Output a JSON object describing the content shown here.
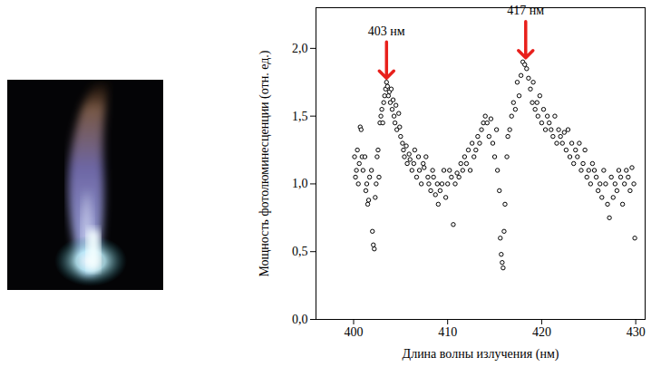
{
  "chart_data": {
    "type": "scatter",
    "x_label": "Длина волны излучения (нм)",
    "y_label": "Мощность фотолюминесценции (отн. ед.)",
    "x": [
      400.1,
      400.2,
      400.3,
      400.4,
      400.5,
      400.6,
      400.7,
      400.8,
      400.9,
      401.0,
      401.2,
      401.3,
      401.4,
      401.5,
      401.6,
      401.7,
      401.9,
      402.0,
      402.1,
      402.2,
      402.3,
      402.4,
      402.5,
      402.6,
      402.7,
      402.8,
      402.9,
      403.0,
      403.1,
      403.2,
      403.3,
      403.4,
      403.5,
      403.6,
      403.7,
      403.8,
      403.9,
      404.0,
      404.1,
      404.2,
      404.3,
      404.4,
      404.5,
      404.6,
      404.8,
      404.9,
      405.0,
      405.2,
      405.3,
      405.4,
      405.6,
      405.7,
      405.9,
      406.0,
      406.2,
      406.4,
      406.5,
      406.7,
      406.9,
      407.0,
      407.2,
      407.4,
      407.5,
      407.7,
      407.9,
      408.0,
      408.2,
      408.4,
      408.5,
      408.7,
      408.9,
      409.0,
      409.2,
      409.4,
      409.6,
      409.8,
      410.0,
      410.2,
      410.4,
      410.6,
      410.8,
      411.0,
      411.2,
      411.4,
      411.6,
      411.8,
      412.0,
      412.2,
      412.4,
      412.6,
      412.8,
      413.0,
      413.2,
      413.4,
      413.6,
      413.8,
      414.0,
      414.2,
      414.4,
      414.6,
      414.8,
      415.0,
      415.2,
      415.3,
      415.5,
      415.6,
      415.7,
      415.8,
      415.9,
      416.0,
      416.1,
      416.3,
      416.4,
      416.6,
      416.8,
      417.0,
      417.2,
      417.4,
      417.6,
      417.8,
      418.0,
      418.2,
      418.4,
      418.6,
      418.8,
      419.0,
      419.1,
      419.3,
      419.5,
      419.6,
      419.8,
      420.0,
      420.2,
      420.4,
      420.6,
      420.8,
      421.0,
      421.2,
      421.4,
      421.6,
      421.8,
      422.0,
      422.2,
      422.4,
      422.6,
      422.8,
      423.0,
      423.2,
      423.4,
      423.6,
      423.8,
      424.0,
      424.2,
      424.4,
      424.6,
      424.8,
      425.0,
      425.2,
      425.4,
      425.6,
      425.8,
      426.0,
      426.2,
      426.4,
      426.6,
      426.8,
      427.0,
      427.2,
      427.4,
      427.6,
      427.8,
      428.0,
      428.2,
      428.4,
      428.6,
      428.8,
      429.0,
      429.2,
      429.4,
      429.6,
      429.8,
      429.9
    ],
    "values": [
      1.2,
      1.05,
      1.1,
      1.25,
      1.0,
      1.15,
      1.42,
      1.4,
      1.2,
      1.1,
      1.2,
      0.95,
      1.0,
      0.85,
      0.88,
      1.05,
      1.1,
      0.65,
      0.55,
      0.52,
      0.9,
      1.0,
      1.2,
      1.25,
      1.05,
      1.45,
      1.5,
      1.55,
      1.45,
      1.6,
      1.65,
      1.7,
      1.75,
      1.72,
      1.65,
      1.68,
      1.6,
      1.7,
      1.55,
      1.62,
      1.5,
      1.45,
      1.58,
      1.4,
      1.52,
      1.42,
      1.35,
      1.3,
      1.25,
      1.2,
      1.28,
      1.15,
      1.22,
      1.18,
      1.1,
      1.15,
      1.25,
      1.05,
      1.2,
      1.1,
      1.0,
      1.15,
      1.12,
      1.2,
      1.05,
      1.0,
      0.95,
      1.1,
      1.05,
      0.92,
      1.0,
      0.85,
      0.95,
      1.0,
      1.1,
      0.9,
      1.0,
      1.1,
      1.05,
      0.7,
      1.0,
      1.08,
      1.05,
      1.15,
      1.1,
      1.2,
      1.15,
      1.25,
      1.1,
      1.3,
      1.2,
      1.25,
      1.35,
      1.3,
      1.4,
      1.45,
      1.5,
      1.45,
      1.35,
      1.48,
      1.3,
      1.2,
      1.4,
      1.1,
      0.95,
      0.6,
      0.48,
      0.42,
      0.38,
      0.65,
      0.85,
      1.2,
      1.35,
      1.4,
      1.5,
      1.6,
      1.55,
      1.75,
      1.65,
      1.8,
      1.9,
      1.88,
      1.85,
      1.78,
      1.7,
      1.6,
      1.75,
      1.55,
      1.6,
      1.5,
      1.65,
      1.45,
      1.55,
      1.4,
      1.5,
      1.45,
      1.4,
      1.35,
      1.5,
      1.3,
      1.4,
      1.35,
      1.3,
      1.38,
      1.25,
      1.4,
      1.2,
      1.3,
      1.15,
      1.25,
      1.2,
      1.3,
      1.1,
      1.15,
      1.25,
      1.05,
      1.1,
      1.0,
      1.15,
      1.1,
      1.05,
      0.95,
      1.0,
      0.9,
      1.1,
      1.0,
      0.85,
      0.75,
      1.05,
      0.9,
      1.0,
      0.95,
      1.1,
      1.05,
      0.85,
      1.0,
      1.1,
      1.05,
      0.95,
      1.12,
      1.0,
      0.6
    ],
    "color": "#000000",
    "marker": "circle",
    "xlim": [
      396,
      431
    ],
    "xticks": [
      400,
      410,
      420,
      430
    ],
    "ylim": [
      0,
      2.3
    ],
    "yticks": [
      {
        "value": 0,
        "label": "0,0"
      },
      {
        "value": 0.5,
        "label": "0,5"
      },
      {
        "value": 1,
        "label": "1,0"
      },
      {
        "value": 1.5,
        "label": "1,5"
      },
      {
        "value": 2,
        "label": "2,0"
      }
    ],
    "grid": false,
    "annotations": [
      {
        "text": "403 нм",
        "x": 403.5,
        "y": 1.78,
        "color": "#e8201c"
      },
      {
        "text": "417 нм",
        "x": 418.3,
        "y": 1.93,
        "color": "#e8201c"
      }
    ]
  }
}
